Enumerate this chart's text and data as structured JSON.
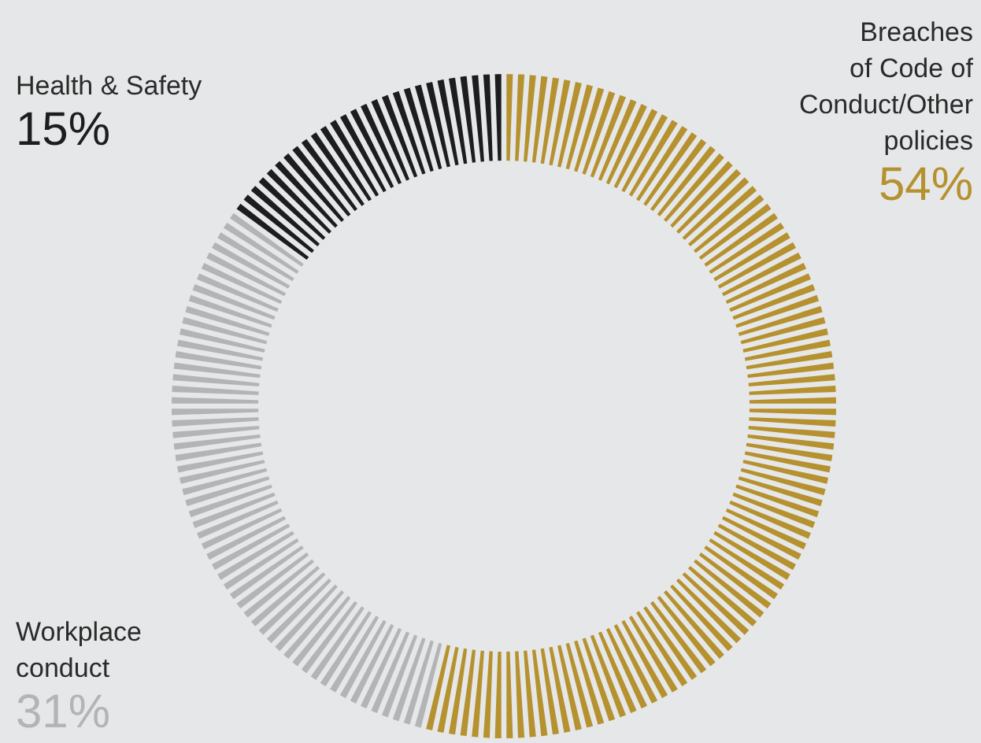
{
  "chart_data": {
    "type": "donut",
    "categories": [
      "Breaches of Code of Conduct/Other policies",
      "Workplace conduct",
      "Health & Safety"
    ],
    "values": [
      54,
      31,
      15
    ],
    "value_labels": [
      "54%",
      "31%",
      "15%"
    ],
    "colors": [
      "#b5912f",
      "#b3b4b6",
      "#1d1d1f"
    ]
  }
}
